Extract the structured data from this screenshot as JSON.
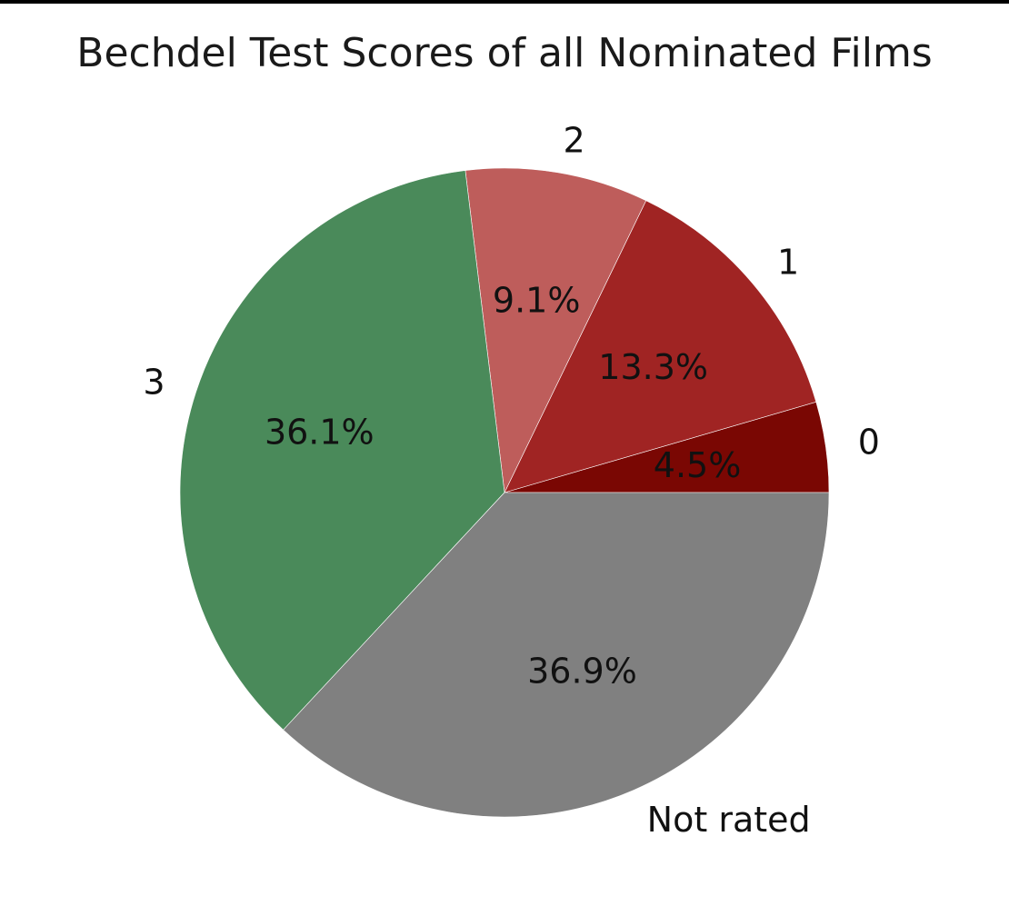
{
  "chart_data": {
    "type": "pie",
    "title": "Bechdel Test Scores of all Nominated Films",
    "slices": [
      {
        "label": "0",
        "value": 4.5,
        "pct_label": "4.5%",
        "color": "#7a0703"
      },
      {
        "label": "1",
        "value": 13.3,
        "pct_label": "13.3%",
        "color": "#a02423"
      },
      {
        "label": "2",
        "value": 9.1,
        "pct_label": "9.1%",
        "color": "#be5d5b"
      },
      {
        "label": "3",
        "value": 36.1,
        "pct_label": "36.1%",
        "color": "#4a8a5a"
      },
      {
        "label": "Not rated",
        "value": 36.9,
        "pct_label": "36.9%",
        "color": "#808080"
      }
    ],
    "start_angle_deg": 0,
    "direction": "counterclockwise"
  }
}
